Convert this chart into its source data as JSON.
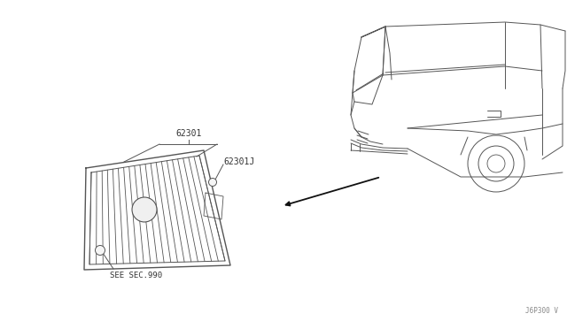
{
  "bg_color": "#ffffff",
  "line_color": "#555555",
  "text_color": "#333333",
  "fig_width": 6.4,
  "fig_height": 3.72,
  "dpi": 100,
  "label_62301": "62301",
  "label_62301J": "62301J",
  "label_see_sec": "SEE SEC.990",
  "label_ref": "J6P300 V",
  "font_size": 7
}
